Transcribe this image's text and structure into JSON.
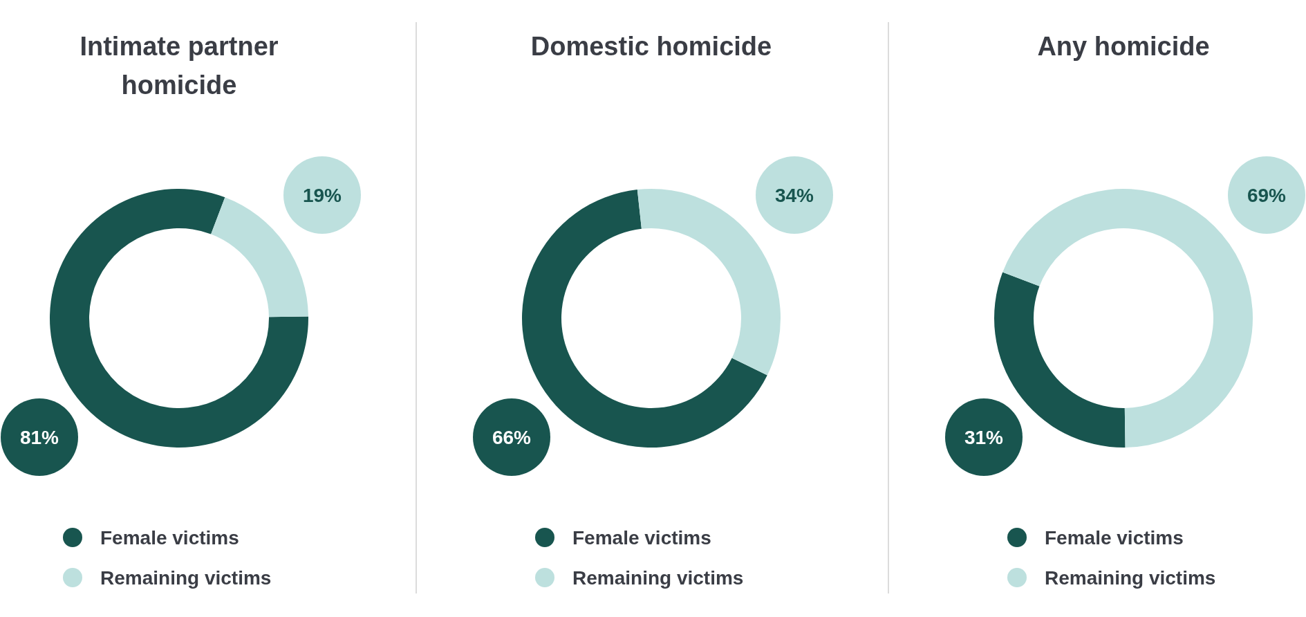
{
  "chart_data": [
    {
      "type": "donut",
      "title": "Intimate partner homicide",
      "categories": [
        "Female victims",
        "Remaining victims"
      ],
      "values": [
        81,
        19
      ],
      "value_labels": [
        "81%",
        "19%"
      ],
      "colors": [
        "#18554f",
        "#bde0de"
      ],
      "legend": "bottom"
    },
    {
      "type": "donut",
      "title": "Domestic homicide",
      "categories": [
        "Female victims",
        "Remaining victims"
      ],
      "values": [
        66,
        34
      ],
      "value_labels": [
        "66%",
        "34%"
      ],
      "colors": [
        "#18554f",
        "#bde0de"
      ],
      "legend": "bottom"
    },
    {
      "type": "donut",
      "title": "Any homicide",
      "categories": [
        "Female victims",
        "Remaining victims"
      ],
      "values": [
        31,
        69
      ],
      "value_labels": [
        "31%",
        "69%"
      ],
      "colors": [
        "#18554f",
        "#bde0de"
      ],
      "legend": "bottom"
    }
  ]
}
